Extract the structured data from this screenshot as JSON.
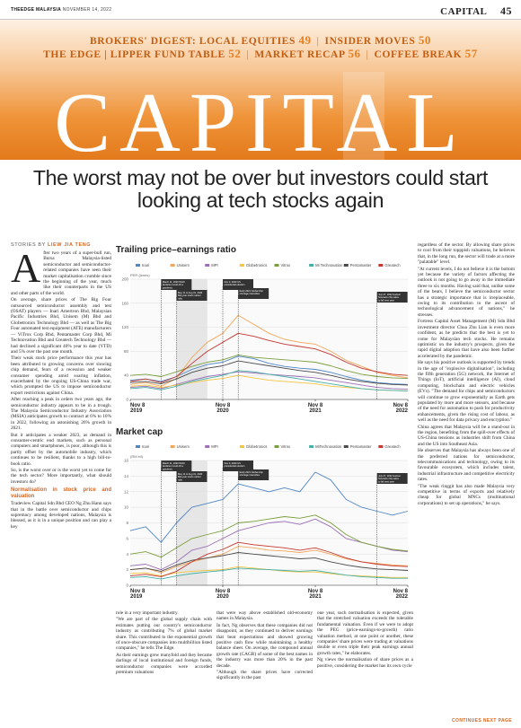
{
  "masthead": {
    "publication": "THEEDGE MALAYSIA",
    "date": "NOVEMBER 14, 2022",
    "section": "CAPITAL",
    "page": "45"
  },
  "ribbon": {
    "row1": [
      {
        "label": "BROKERS' DIGEST: LOCAL EQUITIES",
        "page": "49"
      },
      {
        "label": "INSIDER MOVES",
        "page": "50"
      }
    ],
    "row2": [
      {
        "label": "THE EDGE | LIPPER FUND TABLE",
        "page": "52"
      },
      {
        "label": "MARKET RECAP",
        "page": "56"
      },
      {
        "label": "COFFEE BREAK",
        "page": "57"
      }
    ]
  },
  "banner_word": "CAPITAL",
  "headline": "The worst may not be over but investors could start looking at tech stocks again",
  "byline": {
    "prefix": "STORIES BY",
    "name": "LIEW JIA TENG"
  },
  "continued": "CONTINUES NEXT PAGE",
  "colors": {
    "accent": "#d8641a"
  },
  "body": {
    "col1": [
      "fter two years of a super-bull run, Bursa Malaysia-listed semiconductor and semiconductor-related companies have seen their market capitalisation crumble since the beginning of the year, much like their counterparts in the US and other parts of the world.",
      "On average, share prices of The Big Four outsourced semiconductor assembly and test (OSAT) players — Inari Amertron Bhd, Malaysian Pacific Industries Bhd, Unisem (M) Bhd and Globetronics Technology Bhd — as well as The Big Four automated test equipment (ATE) manufacturers — ViTrox Corp Bhd, Pentamaster Corp Bhd, Mi Technovation Bhd and Greatech Technology Bhd — had declined a significant 40% year to date (YTD) and 5% over the past one month.",
      "Their weak stock price performance this year has been attributed to growing concerns over slowing chip demand, fears of a recession and weaker consumer spending amid soaring inflation, exacerbated by the ongoing US-China trade war, which prompted the US to impose semiconductor export restrictions against China.",
      "After reaching a peak in orders two years ago, the semiconductor industry appears to be in a trough. The Malaysia Semiconductor Industry Association (MSIA) anticipates growth to contract at 6% to 10% in 2022, following an astonishing 26% growth in 2021.",
      "But it anticipates a weaker 2023, as demand in consumer-centric end markets, such as personal computers and smartphones, is poor, although this is partly offset by the automobile industry, which continues to be resilient, thanks to a high bill-to-book ratio.",
      "So, is the worst over or is the worst yet to come for the tech sector? More importantly, what should investors do?"
    ],
    "col1_sub": "Normalisation in stock price and valuation",
    "col1_after": [
      "Tradeview Capital Sdn Bhd CEO Ng Zhu Hann says that in the battle over semiconductor and chips supremacy among developed nations, Malaysia is blessed, as it is in a unique position and can play a key"
    ],
    "colb1": [
      "role in a very important industry.",
      "\"We are part of the global supply chain with estimates putting our country's semiconductor industry as contributing 7% of global market share. This contributed to the exponential growth of once-obscure companies into multibillion listed companies,\" he tells The Edge.",
      "As their earnings grew manyfold and they became darlings of local institutional and foreign funds, semiconductor companies were accorded premium valuations"
    ],
    "colb2": [
      "that were way above established old-economy names in Malaysia.",
      "In fact, Ng observes that these companies did not disappoint, as they continued to deliver earnings that beat expectations and showed growing positive cash flow while maintaining a healthy balance sheet. On average, the compound annual growth rate (CAGR) of some of the best names in the industry was more than 20% in the past decade.",
      "\"Although the share prices have corrected significantly in the past"
    ],
    "colb3": [
      "one year, such normalisation is expected, given that the stretched valuation exceeds the tolerable fundamental valuation. Even if we were to adopt the PEG (price-earnings-to-growth) ratio valuation method, at one point or another, these companies' share prices were trading at valuations double or even triple their peak earnings annual growth rates,\" he elaborates.",
      "Ng views the normalisation of share prices as a positive, considering the market has its own cycle"
    ],
    "col5": [
      "regardless of the sector. By allowing share prices to cool from their topppish valuations, he believes that, in the long run, the sector will trade at a more \"palatable\" level.",
      "\"At current levels, I do not believe it is the bottom yet because the variety of factors affecting the outlook is not going to go away in the immediate three to six months. Having said that, unlike some of the bears, I believe the semiconductor sector has a strategic importance that is irreplaceable, owing to its contribution to the ascent of technological advancement of nations,\" he stresses.",
      "Fortress Capital Asset Management (M) Sdn Bhd investment director Chua Zhu Lian is even more confident, as he predicts that the best is yet to come for Malaysian tech stocks. He remains optimistic on the industry's prospects, given the rapid digital adoption that have also been further accelerated by the pandemic.",
      "He says his positive outlook is supported by trends in the age of \"explosive digitalisation\", including the fifth generation (5G) network, the Internet of Things (IoT), artificial intelligence (AI), cloud computing, blockchain and electric vehicles (EVs). \"The demand for chips and semiconductors will continue to grow exponentially as Earth gets populated by more and more sensors, and because of the need for automation to push for productivity enhancements, given the rising cost of labour, as well as the need for data privacy and encryption.\"",
      "China agrees that Malaysia will be a stand-out in the region, benefiting from the spill-over effects of US-China tensions as industries shift from China and the US into Southeast Asia.",
      "He observes that Malaysia has always been one of the preferred nations for semiconductor, telecommunications and technology, owing to its favourable ecosystem, which includes talent, industrial infrastructure and competitive electricity rates.",
      "\"The weak ringgit has also made Malaysia very competitive in terms of exports and relatively cheap for global MNCs (multinational corporations) to set up operations,\" he says."
    ]
  },
  "chart_data": [
    {
      "type": "line",
      "title": "Trailing price–earnings ratio",
      "ylabel": "PER (times)",
      "ylim": [
        0,
        200
      ],
      "yticks": [
        0,
        40,
        80,
        120,
        160,
        200
      ],
      "x": [
        "2019-11",
        "2020-01",
        "2020-03",
        "2020-05",
        "2020-07",
        "2020-09",
        "2020-11",
        "2021-01",
        "2021-03",
        "2021-05",
        "2021-07",
        "2021-09",
        "2021-11",
        "2022-01",
        "2022-03",
        "2022-05",
        "2022-07",
        "2022-09",
        "2022-11"
      ],
      "xticks": [
        {
          "month": "Nov 8",
          "year": "2019"
        },
        {
          "month": "Nov 8",
          "year": "2020"
        },
        {
          "month": "Nov 8",
          "year": "2021"
        },
        {
          "month": "Nov 8",
          "year": "2022"
        }
      ],
      "legend": [
        "Inari",
        "Unisem",
        "MPI",
        "Globetronics",
        "Vitrox",
        "Mi Technovation",
        "Pentamaster",
        "Greatech"
      ],
      "series": [
        {
          "name": "Inari",
          "color": "#4f86c6",
          "values": [
            32,
            34,
            30,
            38,
            50,
            58,
            62,
            72,
            68,
            60,
            55,
            52,
            50,
            45,
            38,
            32,
            28,
            26,
            25
          ]
        },
        {
          "name": "Unisem",
          "color": "#f2a65a",
          "values": [
            25,
            28,
            22,
            35,
            70,
            95,
            110,
            140,
            125,
            110,
            100,
            95,
            92,
            80,
            65,
            55,
            45,
            40,
            36
          ]
        },
        {
          "name": "MPI",
          "color": "#9b6fb6",
          "values": [
            20,
            22,
            18,
            25,
            32,
            38,
            42,
            46,
            44,
            42,
            40,
            38,
            36,
            32,
            28,
            24,
            20,
            18,
            17
          ]
        },
        {
          "name": "Globetronics",
          "color": "#f5c542",
          "values": [
            22,
            24,
            20,
            24,
            28,
            32,
            35,
            40,
            36,
            32,
            30,
            28,
            26,
            22,
            20,
            18,
            16,
            15,
            14
          ]
        },
        {
          "name": "Vitrox",
          "color": "#7a9e3b",
          "values": [
            40,
            42,
            38,
            46,
            55,
            62,
            66,
            74,
            70,
            68,
            66,
            64,
            62,
            56,
            48,
            42,
            38,
            36,
            35
          ]
        },
        {
          "name": "Mi Technovation",
          "color": "#45b0a8",
          "values": [
            18,
            20,
            16,
            22,
            30,
            35,
            40,
            48,
            46,
            42,
            38,
            34,
            30,
            26,
            22,
            18,
            16,
            15,
            14
          ]
        },
        {
          "name": "Pentamaster",
          "color": "#4a4a4a",
          "values": [
            28,
            30,
            26,
            34,
            45,
            52,
            56,
            64,
            60,
            56,
            52,
            48,
            45,
            40,
            34,
            30,
            27,
            25,
            24
          ]
        },
        {
          "name": "Greatech",
          "color": "#c4382f",
          "values": [
            30,
            34,
            28,
            38,
            60,
            80,
            95,
            110,
            105,
            98,
            92,
            88,
            84,
            75,
            62,
            52,
            46,
            42,
            40
          ]
        }
      ],
      "annotations": [
        {
          "at": "2020-03",
          "text": "March 11, 2020 WHO declares Covid-19 a pandemic"
        },
        {
          "at": "2020-05",
          "text": "May 11 to Aug 31, 2020 Mid-year stock market rally"
        },
        {
          "at": "2020-11",
          "text": "Nov 3, 2020 US presidential election"
        },
        {
          "at": "2021-01",
          "text": "Early 2021 Global chip shortage intensifies"
        },
        {
          "at": "2022-07",
          "text": "July 27, 2022 Gartner forecasts chip sales to fall next year"
        }
      ]
    },
    {
      "type": "line",
      "title": "Market cap",
      "ylabel": "(RM bil)",
      "ylim": [
        0,
        16
      ],
      "yticks": [
        0,
        2,
        4,
        6,
        8,
        10,
        12,
        14,
        16
      ],
      "x": [
        "2019-11",
        "2020-01",
        "2020-03",
        "2020-05",
        "2020-07",
        "2020-09",
        "2020-11",
        "2021-01",
        "2021-03",
        "2021-05",
        "2021-07",
        "2021-09",
        "2021-11",
        "2022-01",
        "2022-03",
        "2022-05",
        "2022-07",
        "2022-09",
        "2022-11"
      ],
      "xticks": [
        {
          "month": "Nov 8",
          "year": "2019"
        },
        {
          "month": "Nov 8",
          "year": "2020"
        },
        {
          "month": "Nov 8",
          "year": "2021"
        },
        {
          "month": "Nov 8",
          "year": "2022"
        }
      ],
      "legend": [
        "Inari",
        "Unisem",
        "MPI",
        "Globetronics",
        "Vitrox",
        "MiTechnovation",
        "Pentamaster",
        "Greatech"
      ],
      "series": [
        {
          "name": "Inari",
          "color": "#4f86c6",
          "values": [
            7,
            7.5,
            5.5,
            8,
            10,
            10.5,
            11,
            13,
            12.5,
            12,
            12.5,
            12,
            14.5,
            13.5,
            11,
            10,
            9.5,
            9,
            9.5
          ]
        },
        {
          "name": "Unisem",
          "color": "#f2a65a",
          "values": [
            2,
            2.2,
            1.6,
            2.4,
            3,
            3.5,
            4,
            5,
            4.8,
            4.5,
            4.4,
            4.2,
            4.5,
            4,
            3.4,
            3,
            2.8,
            2.6,
            2.5
          ]
        },
        {
          "name": "MPI",
          "color": "#9b6fb6",
          "values": [
            2.5,
            2.7,
            2,
            3,
            4.5,
            5,
            6,
            7,
            7.5,
            8,
            8.2,
            7.8,
            8.5,
            7.5,
            6,
            5.5,
            5,
            4.5,
            4.3
          ]
        },
        {
          "name": "Globetronics",
          "color": "#f5c542",
          "values": [
            1.5,
            1.6,
            1.2,
            1.6,
            1.8,
            1.9,
            2,
            2.4,
            2.2,
            2,
            1.8,
            1.7,
            1.7,
            1.5,
            1.3,
            1.2,
            1.1,
            1,
            1
          ]
        },
        {
          "name": "Vitrox",
          "color": "#7a9e3b",
          "values": [
            4,
            4.3,
            3.6,
            4.8,
            6,
            6.5,
            7,
            8,
            8.2,
            8.5,
            8.8,
            8.6,
            9,
            8,
            6.5,
            5.5,
            5,
            4.6,
            4.4
          ]
        },
        {
          "name": "MiTechnovation",
          "color": "#45b0a8",
          "values": [
            1,
            1.1,
            0.8,
            1.2,
            1.5,
            1.7,
            1.9,
            2.2,
            2.1,
            2,
            1.9,
            1.8,
            1.9,
            1.6,
            1.3,
            1.1,
            1,
            0.9,
            0.9
          ]
        },
        {
          "name": "Pentamaster",
          "color": "#4a4a4a",
          "values": [
            2,
            2.2,
            1.8,
            2.6,
            3.2,
            3.5,
            3.8,
            4.2,
            4,
            3.8,
            3.6,
            3.4,
            3.5,
            3,
            2.6,
            2.3,
            2.1,
            2,
            1.9
          ]
        },
        {
          "name": "Greatech",
          "color": "#c4382f",
          "values": [
            1.2,
            1.4,
            1.1,
            1.8,
            3,
            4,
            4.6,
            5.5,
            5.2,
            5,
            4.8,
            4.5,
            4.8,
            4.2,
            3.5,
            3,
            2.7,
            2.5,
            2.4
          ]
        }
      ],
      "annotations": [
        {
          "at": "2020-03",
          "text": "March 11, 2020 WHO declares Covid-19 a pandemic"
        },
        {
          "at": "2020-05",
          "text": "May 11 to Aug 31, 2020 Mid-year stock market rally"
        },
        {
          "at": "2020-11",
          "text": "Nov 3, 2020 US presidential election"
        },
        {
          "at": "2021-01",
          "text": "Early 2021 Global chip shortage intensifies"
        },
        {
          "at": "2022-07",
          "text": "July 27, 2022 Gartner forecasts chip sales to fall next year"
        }
      ]
    }
  ]
}
